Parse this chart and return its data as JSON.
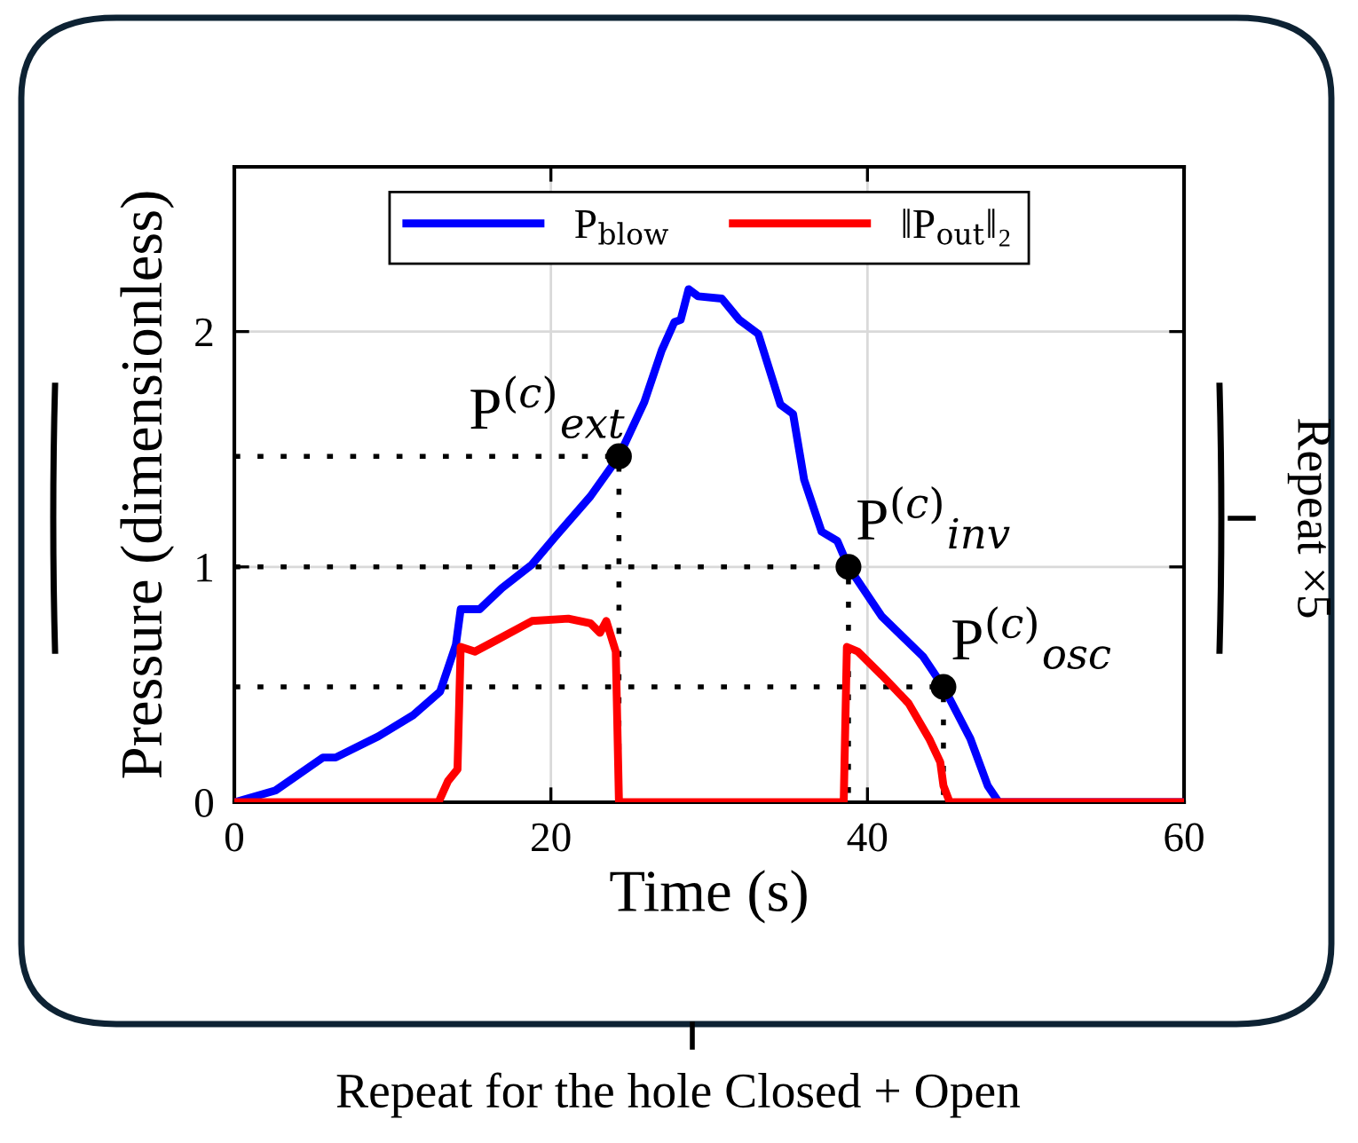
{
  "chart_data": {
    "type": "line",
    "xlabel": "Time (s)",
    "ylabel": "Pressure (dimensionless)",
    "xlim": [
      0,
      60
    ],
    "xticks": [
      0,
      20,
      40,
      60
    ],
    "ylim": [
      0,
      2.7
    ],
    "yticks": [
      0,
      1,
      2
    ],
    "grid": true,
    "legend": "top",
    "series": [
      {
        "name": "P$_{blow}$",
        "color": "#0000ff",
        "x": [
          0,
          2.6,
          5.6,
          6.4,
          9.1,
          11.3,
          13,
          14,
          14.3,
          15.5,
          16.9,
          18.8,
          20.3,
          22.5,
          24.3,
          25.9,
          27,
          27.8,
          28.2,
          28.7,
          29.3,
          30.8,
          31.9,
          33.1,
          34.5,
          35.3,
          36,
          37.1,
          38.1,
          38.8,
          40.9,
          43.5,
          44.8,
          46.5,
          47.6,
          48.3,
          60
        ],
        "values": [
          0,
          0.05,
          0.19,
          0.19,
          0.28,
          0.37,
          0.47,
          0.67,
          0.82,
          0.82,
          0.91,
          1.01,
          1.13,
          1.3,
          1.47,
          1.7,
          1.92,
          2.04,
          2.05,
          2.18,
          2.15,
          2.14,
          2.05,
          1.99,
          1.69,
          1.65,
          1.37,
          1.15,
          1.11,
          1.0,
          0.79,
          0.62,
          0.49,
          0.27,
          0.07,
          0,
          0
        ]
      },
      {
        "name": "‖P$_{out}$‖₂",
        "color": "#ff0000",
        "x": [
          0,
          12.9,
          13.5,
          14.1,
          14.3,
          15.2,
          16.6,
          18.8,
          21.1,
          22.5,
          23.1,
          23.5,
          24.1,
          24.3,
          38.5,
          38.7,
          39.4,
          40.9,
          42.6,
          43.9,
          44.6,
          44.8,
          45.2,
          60
        ],
        "values": [
          0,
          0,
          0.09,
          0.14,
          0.66,
          0.64,
          0.69,
          0.77,
          0.78,
          0.76,
          0.72,
          0.77,
          0.64,
          0,
          0,
          0.66,
          0.64,
          0.54,
          0.42,
          0.27,
          0.17,
          0.07,
          0,
          0
        ]
      },
      {
        "color": "#000000",
        "line_style": "dotted",
        "x": [
          0,
          24.3,
          24.3
        ],
        "values": [
          1.47,
          1.47,
          0
        ]
      },
      {
        "color": "#000000",
        "line_style": "dotted",
        "x": [
          0,
          38.8,
          38.8
        ],
        "values": [
          1.0,
          1.0,
          0
        ]
      },
      {
        "color": "#000000",
        "line_style": "dotted",
        "x": [
          0,
          44.8,
          44.8
        ],
        "values": [
          0.49,
          0.49,
          0
        ]
      },
      {
        "type": "scatter",
        "color": "#000000",
        "marker": "circle",
        "x": [
          24.3,
          38.8,
          44.8
        ],
        "values": [
          1.47,
          1.0,
          0.49
        ]
      }
    ],
    "annotations": [
      {
        "text": "P$^{(c)}$$_{ext}$",
        "x": 24.3,
        "y": 1.47
      },
      {
        "text": "P$^{(c)}$$_{inv}$",
        "x": 38.8,
        "y": 1.0
      },
      {
        "text": "P$^{(c)}$$_{osc}$",
        "x": 44.8,
        "y": 0.49
      },
      "Repeat ×5",
      "Repeat for the hole Closed + Open"
    ]
  }
}
